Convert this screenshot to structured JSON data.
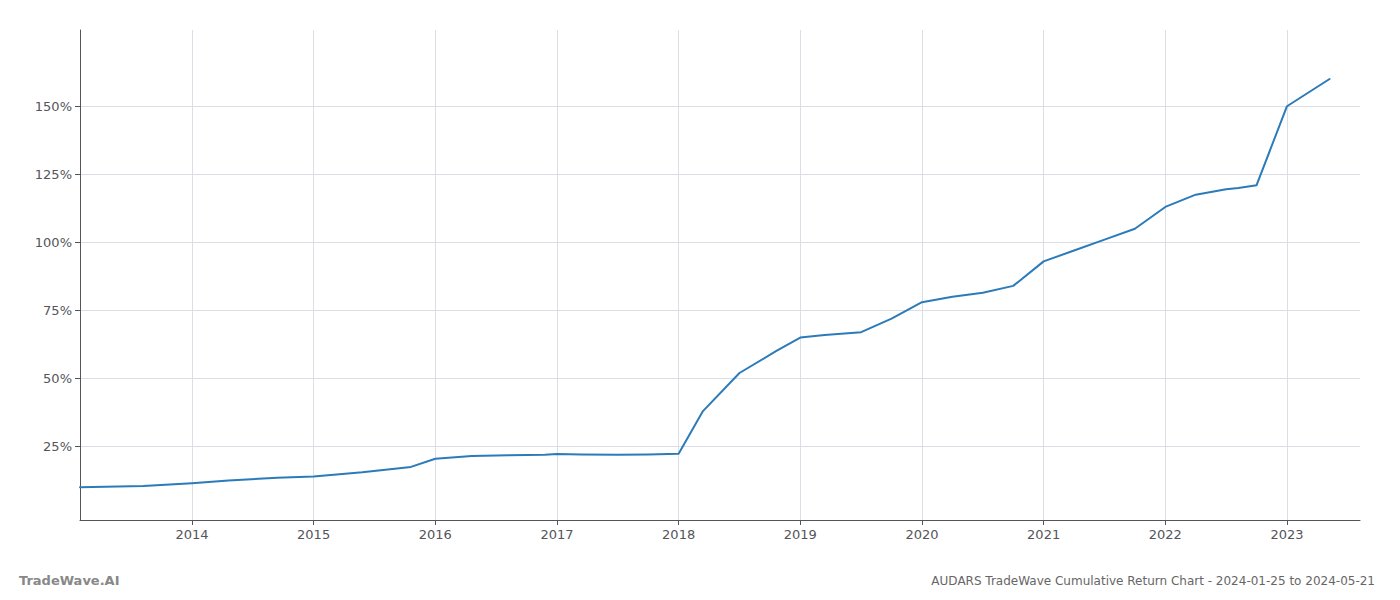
{
  "chart_data": {
    "type": "line",
    "title": "AUDARS TradeWave Cumulative Return Chart - 2024-01-25 to 2024-05-21",
    "annotations": [
      "TradeWave.AI"
    ],
    "color": "#2b7bba",
    "x": [
      2013.08,
      2013.6,
      2014.0,
      2014.3,
      2014.7,
      2015.0,
      2015.4,
      2015.8,
      2016.0,
      2016.3,
      2016.6,
      2016.9,
      2017.0,
      2017.2,
      2017.5,
      2017.75,
      2018.0,
      2018.2,
      2018.5,
      2018.8,
      2019.0,
      2019.2,
      2019.5,
      2019.75,
      2020.0,
      2020.25,
      2020.5,
      2020.75,
      2021.0,
      2021.25,
      2021.5,
      2021.75,
      2022.0,
      2022.25,
      2022.5,
      2022.6,
      2022.75,
      2023.0,
      2023.35
    ],
    "values": [
      0.1,
      0.105,
      0.115,
      0.125,
      0.135,
      0.14,
      0.155,
      0.175,
      0.205,
      0.215,
      0.218,
      0.22,
      0.222,
      0.221,
      0.22,
      0.221,
      0.223,
      0.38,
      0.52,
      0.6,
      0.65,
      0.66,
      0.67,
      0.72,
      0.78,
      0.8,
      0.815,
      0.84,
      0.93,
      0.97,
      1.01,
      1.05,
      1.13,
      1.175,
      1.195,
      1.2,
      1.21,
      1.5,
      1.6
    ],
    "xlim": [
      2013.08,
      2023.6
    ],
    "xticks": [
      2014,
      2015,
      2016,
      2017,
      2018,
      2019,
      2020,
      2021,
      2022,
      2023
    ],
    "ylim": [
      -0.02,
      1.78
    ],
    "yticks": [
      {
        "value": 0.25,
        "label": "25%"
      },
      {
        "value": 0.5,
        "label": "50%"
      },
      {
        "value": 0.75,
        "label": "75%"
      },
      {
        "value": 1.0,
        "label": "100%"
      },
      {
        "value": 1.25,
        "label": "125%"
      },
      {
        "value": 1.5,
        "label": "150%"
      }
    ],
    "grid": true
  }
}
